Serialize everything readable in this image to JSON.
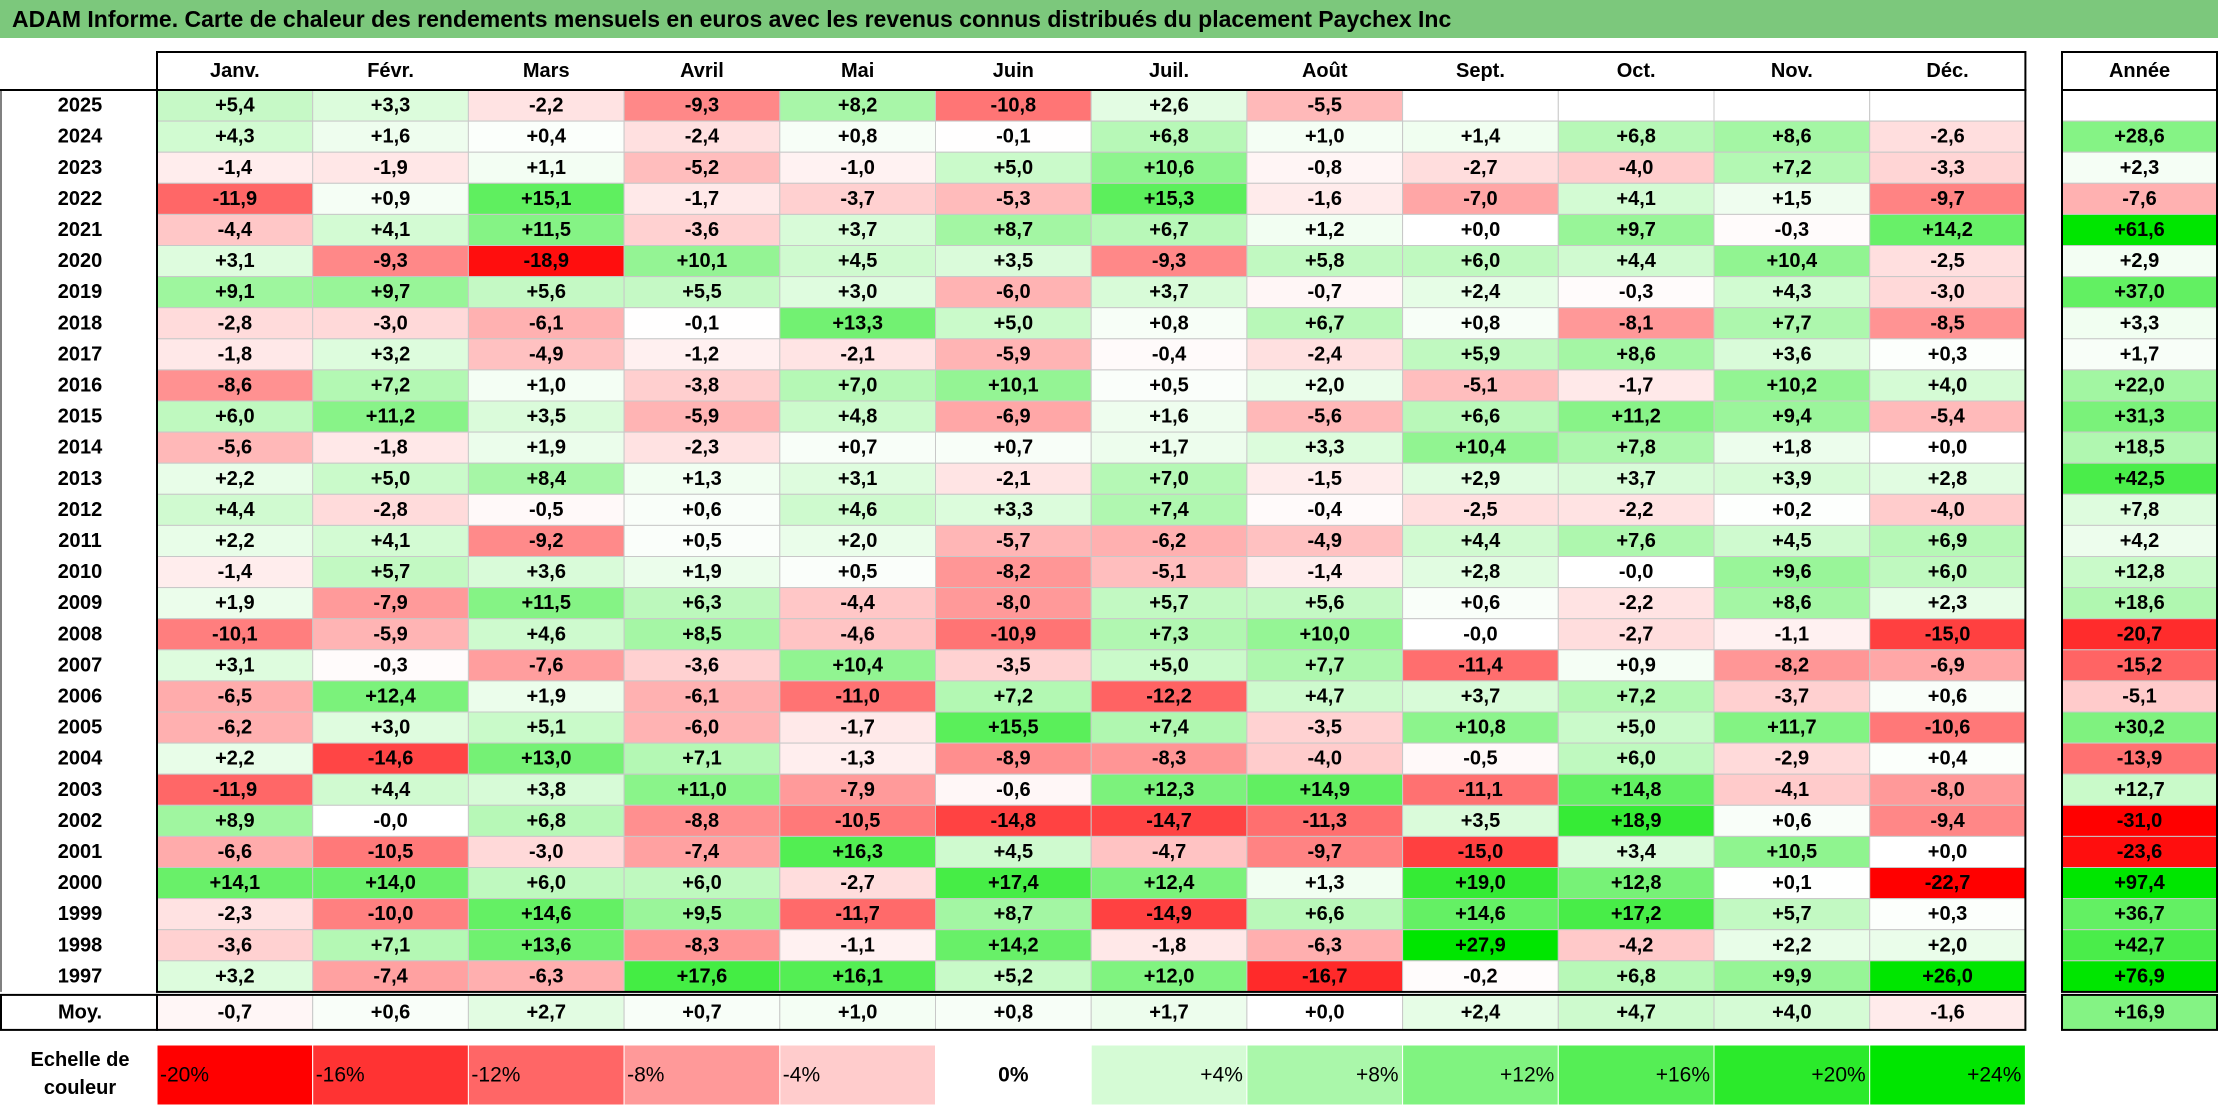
{
  "title": "ADAM Informe. Carte de chaleur des rendements mensuels en euros avec les revenus connus distribués du placement Paychex Inc",
  "chart_data": {
    "type": "heatmap",
    "title": "ADAM Informe. Carte de chaleur des rendements mensuels en euros avec les revenus connus distribués du placement Paychex Inc",
    "months": [
      "Janv.",
      "Févr.",
      "Mars",
      "Avril",
      "Mai",
      "Juin",
      "Juil.",
      "Août",
      "Sept.",
      "Oct.",
      "Nov.",
      "Déc."
    ],
    "year_header": "Année",
    "avg_label": "Moy.",
    "rows": [
      {
        "year": "2025",
        "values": [
          "+5,4",
          "+3,3",
          "-2,2",
          "-9,3",
          "+8,2",
          "-10,8",
          "+2,6",
          "-5,5",
          "",
          "",
          "",
          ""
        ],
        "annual": ""
      },
      {
        "year": "2024",
        "values": [
          "+4,3",
          "+1,6",
          "+0,4",
          "-2,4",
          "+0,8",
          "-0,1",
          "+6,8",
          "+1,0",
          "+1,4",
          "+6,8",
          "+8,6",
          "-2,6"
        ],
        "annual": "+28,6"
      },
      {
        "year": "2023",
        "values": [
          "-1,4",
          "-1,9",
          "+1,1",
          "-5,2",
          "-1,0",
          "+5,0",
          "+10,6",
          "-0,8",
          "-2,7",
          "-4,0",
          "+7,2",
          "-3,3"
        ],
        "annual": "+2,3"
      },
      {
        "year": "2022",
        "values": [
          "-11,9",
          "+0,9",
          "+15,1",
          "-1,7",
          "-3,7",
          "-5,3",
          "+15,3",
          "-1,6",
          "-7,0",
          "+4,1",
          "+1,5",
          "-9,7"
        ],
        "annual": "-7,6"
      },
      {
        "year": "2021",
        "values": [
          "-4,4",
          "+4,1",
          "+11,5",
          "-3,6",
          "+3,7",
          "+8,7",
          "+6,7",
          "+1,2",
          "+0,0",
          "+9,7",
          "-0,3",
          "+14,2"
        ],
        "annual": "+61,6"
      },
      {
        "year": "2020",
        "values": [
          "+3,1",
          "-9,3",
          "-18,9",
          "+10,1",
          "+4,5",
          "+3,5",
          "-9,3",
          "+5,8",
          "+6,0",
          "+4,4",
          "+10,4",
          "-2,5"
        ],
        "annual": "+2,9"
      },
      {
        "year": "2019",
        "values": [
          "+9,1",
          "+9,7",
          "+5,6",
          "+5,5",
          "+3,0",
          "-6,0",
          "+3,7",
          "-0,7",
          "+2,4",
          "-0,3",
          "+4,3",
          "-3,0"
        ],
        "annual": "+37,0"
      },
      {
        "year": "2018",
        "values": [
          "-2,8",
          "-3,0",
          "-6,1",
          "-0,1",
          "+13,3",
          "+5,0",
          "+0,8",
          "+6,7",
          "+0,8",
          "-8,1",
          "+7,7",
          "-8,5"
        ],
        "annual": "+3,3"
      },
      {
        "year": "2017",
        "values": [
          "-1,8",
          "+3,2",
          "-4,9",
          "-1,2",
          "-2,1",
          "-5,9",
          "-0,4",
          "-2,4",
          "+5,9",
          "+8,6",
          "+3,6",
          "+0,3"
        ],
        "annual": "+1,7"
      },
      {
        "year": "2016",
        "values": [
          "-8,6",
          "+7,2",
          "+1,0",
          "-3,8",
          "+7,0",
          "+10,1",
          "+0,5",
          "+2,0",
          "-5,1",
          "-1,7",
          "+10,2",
          "+4,0"
        ],
        "annual": "+22,0"
      },
      {
        "year": "2015",
        "values": [
          "+6,0",
          "+11,2",
          "+3,5",
          "-5,9",
          "+4,8",
          "-6,9",
          "+1,6",
          "-5,6",
          "+6,6",
          "+11,2",
          "+9,4",
          "-5,4"
        ],
        "annual": "+31,3"
      },
      {
        "year": "2014",
        "values": [
          "-5,6",
          "-1,8",
          "+1,9",
          "-2,3",
          "+0,7",
          "+0,7",
          "+1,7",
          "+3,3",
          "+10,4",
          "+7,8",
          "+1,8",
          "+0,0"
        ],
        "annual": "+18,5"
      },
      {
        "year": "2013",
        "values": [
          "+2,2",
          "+5,0",
          "+8,4",
          "+1,3",
          "+3,1",
          "-2,1",
          "+7,0",
          "-1,5",
          "+2,9",
          "+3,7",
          "+3,9",
          "+2,8"
        ],
        "annual": "+42,5"
      },
      {
        "year": "2012",
        "values": [
          "+4,4",
          "-2,8",
          "-0,5",
          "+0,6",
          "+4,6",
          "+3,3",
          "+7,4",
          "-0,4",
          "-2,5",
          "-2,2",
          "+0,2",
          "-4,0"
        ],
        "annual": "+7,8"
      },
      {
        "year": "2011",
        "values": [
          "+2,2",
          "+4,1",
          "-9,2",
          "+0,5",
          "+2,0",
          "-5,7",
          "-6,2",
          "-4,9",
          "+4,4",
          "+7,6",
          "+4,5",
          "+6,9"
        ],
        "annual": "+4,2"
      },
      {
        "year": "2010",
        "values": [
          "-1,4",
          "+5,7",
          "+3,6",
          "+1,9",
          "+0,5",
          "-8,2",
          "-5,1",
          "-1,4",
          "+2,8",
          "-0,0",
          "+9,6",
          "+6,0"
        ],
        "annual": "+12,8"
      },
      {
        "year": "2009",
        "values": [
          "+1,9",
          "-7,9",
          "+11,5",
          "+6,3",
          "-4,4",
          "-8,0",
          "+5,7",
          "+5,6",
          "+0,6",
          "-2,2",
          "+8,6",
          "+2,3"
        ],
        "annual": "+18,6"
      },
      {
        "year": "2008",
        "values": [
          "-10,1",
          "-5,9",
          "+4,6",
          "+8,5",
          "-4,6",
          "-10,9",
          "+7,3",
          "+10,0",
          "-0,0",
          "-2,7",
          "-1,1",
          "-15,0"
        ],
        "annual": "-20,7"
      },
      {
        "year": "2007",
        "values": [
          "+3,1",
          "-0,3",
          "-7,6",
          "-3,6",
          "+10,4",
          "-3,5",
          "+5,0",
          "+7,7",
          "-11,4",
          "+0,9",
          "-8,2",
          "-6,9"
        ],
        "annual": "-15,2"
      },
      {
        "year": "2006",
        "values": [
          "-6,5",
          "+12,4",
          "+1,9",
          "-6,1",
          "-11,0",
          "+7,2",
          "-12,2",
          "+4,7",
          "+3,7",
          "+7,2",
          "-3,7",
          "+0,6"
        ],
        "annual": "-5,1"
      },
      {
        "year": "2005",
        "values": [
          "-6,2",
          "+3,0",
          "+5,1",
          "-6,0",
          "-1,7",
          "+15,5",
          "+7,4",
          "-3,5",
          "+10,8",
          "+5,0",
          "+11,7",
          "-10,6"
        ],
        "annual": "+30,2"
      },
      {
        "year": "2004",
        "values": [
          "+2,2",
          "-14,6",
          "+13,0",
          "+7,1",
          "-1,3",
          "-8,9",
          "-8,3",
          "-4,0",
          "-0,5",
          "+6,0",
          "-2,9",
          "+0,4"
        ],
        "annual": "-13,9"
      },
      {
        "year": "2003",
        "values": [
          "-11,9",
          "+4,4",
          "+3,8",
          "+11,0",
          "-7,9",
          "-0,6",
          "+12,3",
          "+14,9",
          "-11,1",
          "+14,8",
          "-4,1",
          "-8,0"
        ],
        "annual": "+12,7"
      },
      {
        "year": "2002",
        "values": [
          "+8,9",
          "-0,0",
          "+6,8",
          "-8,8",
          "-10,5",
          "-14,8",
          "-14,7",
          "-11,3",
          "+3,5",
          "+18,9",
          "+0,6",
          "-9,4"
        ],
        "annual": "-31,0"
      },
      {
        "year": "2001",
        "values": [
          "-6,6",
          "-10,5",
          "-3,0",
          "-7,4",
          "+16,3",
          "+4,5",
          "-4,7",
          "-9,7",
          "-15,0",
          "+3,4",
          "+10,5",
          "+0,0"
        ],
        "annual": "-23,6"
      },
      {
        "year": "2000",
        "values": [
          "+14,1",
          "+14,0",
          "+6,0",
          "+6,0",
          "-2,7",
          "+17,4",
          "+12,4",
          "+1,3",
          "+19,0",
          "+12,8",
          "+0,1",
          "-22,7"
        ],
        "annual": "+97,4"
      },
      {
        "year": "1999",
        "values": [
          "-2,3",
          "-10,0",
          "+14,6",
          "+9,5",
          "-11,7",
          "+8,7",
          "-14,9",
          "+6,6",
          "+14,6",
          "+17,2",
          "+5,7",
          "+0,3"
        ],
        "annual": "+36,7"
      },
      {
        "year": "1998",
        "values": [
          "-3,6",
          "+7,1",
          "+13,6",
          "-8,3",
          "-1,1",
          "+14,2",
          "-1,8",
          "-6,3",
          "+27,9",
          "-4,2",
          "+2,2",
          "+2,0"
        ],
        "annual": "+42,7"
      },
      {
        "year": "1997",
        "values": [
          "+3,2",
          "-7,4",
          "-6,3",
          "+17,6",
          "+16,1",
          "+5,2",
          "+12,0",
          "-16,7",
          "-0,2",
          "+6,8",
          "+9,9",
          "+26,0"
        ],
        "annual": "+76,9"
      }
    ],
    "average": {
      "values": [
        "-0,7",
        "+0,6",
        "+2,7",
        "+0,7",
        "+1,0",
        "+0,8",
        "+1,7",
        "+0,0",
        "+2,4",
        "+4,7",
        "+4,0",
        "-1,6"
      ],
      "annual": "+16,9"
    },
    "scale_label_line1": "Echelle de",
    "scale_label_line2": "couleur",
    "scale": [
      {
        "label": "-20%",
        "value": -20
      },
      {
        "label": "-16%",
        "value": -16
      },
      {
        "label": "-12%",
        "value": -12
      },
      {
        "label": "-8%",
        "value": -8
      },
      {
        "label": "-4%",
        "value": -4
      },
      {
        "label": "0%",
        "value": 0
      },
      {
        "label": "+4%",
        "value": 4
      },
      {
        "label": "+8%",
        "value": 8
      },
      {
        "label": "+12%",
        "value": 12
      },
      {
        "label": "+16%",
        "value": 16
      },
      {
        "label": "+20%",
        "value": 20
      },
      {
        "label": "+24%",
        "value": 24
      }
    ],
    "colors": {
      "negative_max": "#ff0000",
      "neutral": "#ffffff",
      "positive_max": "#00e600",
      "title_bg": "#7cc87c"
    }
  }
}
